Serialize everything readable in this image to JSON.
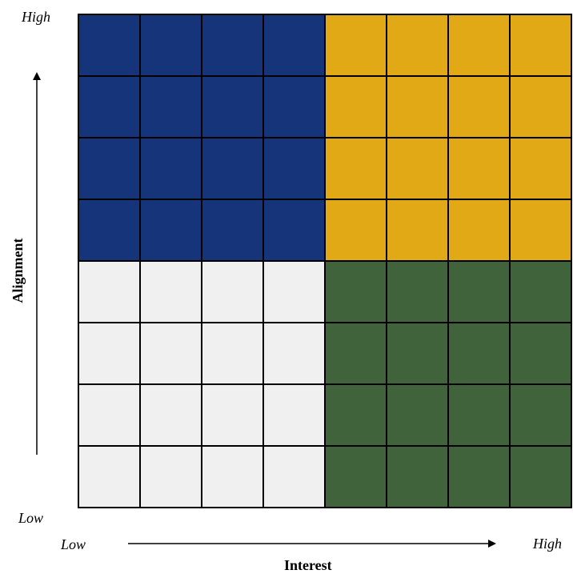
{
  "labels": {
    "y_high": "High",
    "y_low": "Low",
    "x_low": "Low",
    "x_high": "High",
    "x_axis": "Interest",
    "y_axis": "Alignment"
  },
  "colors": {
    "top_left": "#15347a",
    "top_right": "#e2a917",
    "bottom_left": "#f0f0f0",
    "bottom_right": "#41633b",
    "grid_lines": "#000000"
  },
  "matrix": {
    "rows": 8,
    "cols": 8
  }
}
